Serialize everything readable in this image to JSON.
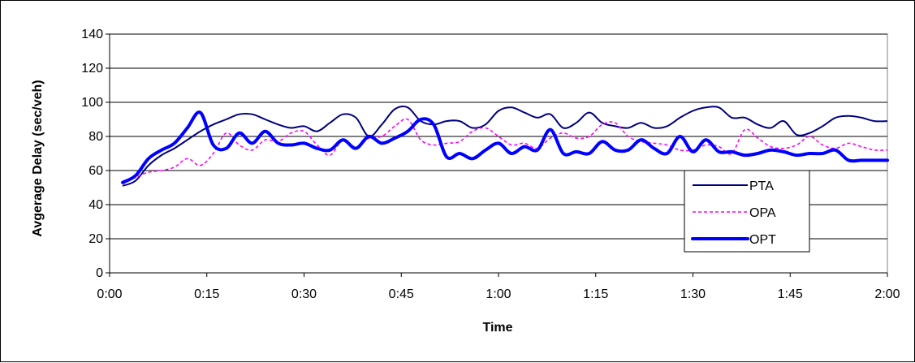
{
  "chart_data": {
    "type": "line",
    "xlabel": "Time",
    "ylabel": "Avgerage Delay (sec/veh)",
    "xlim": [
      0,
      120
    ],
    "ylim": [
      0,
      140
    ],
    "x_ticks": [
      {
        "value": 0,
        "label": "0:00"
      },
      {
        "value": 15,
        "label": "0:15"
      },
      {
        "value": 30,
        "label": "0:30"
      },
      {
        "value": 45,
        "label": "0:45"
      },
      {
        "value": 60,
        "label": "1:00"
      },
      {
        "value": 75,
        "label": "1:15"
      },
      {
        "value": 90,
        "label": "1:30"
      },
      {
        "value": 105,
        "label": "1:45"
      },
      {
        "value": 120,
        "label": "2:00"
      }
    ],
    "y_ticks": [
      0,
      20,
      40,
      60,
      80,
      100,
      120,
      140
    ],
    "grid": "horizontal",
    "legend_position": "lower-right",
    "series": [
      {
        "name": "PTA",
        "color": "#000080",
        "line_style": "solid",
        "x": [
          2,
          4,
          6,
          8,
          10,
          12,
          14,
          16,
          18,
          20,
          22,
          24,
          26,
          28,
          30,
          32,
          34,
          36,
          38,
          40,
          42,
          44,
          46,
          48,
          50,
          52,
          54,
          56,
          58,
          60,
          62,
          64,
          66,
          68,
          70,
          72,
          74,
          76,
          78,
          80,
          82,
          84,
          86,
          88,
          90,
          92,
          94,
          96,
          98,
          100,
          102,
          104,
          106,
          108,
          110,
          112,
          114,
          116,
          118,
          120
        ],
        "y": [
          51,
          54,
          63,
          69,
          73,
          78,
          83,
          87,
          90,
          93,
          93,
          90,
          87,
          85,
          86,
          83,
          88,
          93,
          91,
          80,
          87,
          96,
          97,
          89,
          87,
          89,
          89,
          85,
          87,
          95,
          97,
          94,
          91,
          93,
          85,
          88,
          94,
          88,
          86,
          85,
          88,
          85,
          86,
          91,
          95,
          97,
          97,
          91,
          91,
          87,
          85,
          89,
          81,
          82,
          86,
          91,
          92,
          91,
          89,
          89
        ],
        "interpolation": "smooth"
      },
      {
        "name": "OPA",
        "color": "#ff00ff",
        "line_style": "dashed",
        "x": [
          2,
          4,
          6,
          8,
          10,
          12,
          14,
          16,
          18,
          20,
          22,
          24,
          26,
          28,
          30,
          32,
          34,
          36,
          38,
          40,
          42,
          44,
          46,
          48,
          50,
          52,
          54,
          56,
          58,
          60,
          62,
          64,
          66,
          68,
          70,
          72,
          74,
          76,
          78,
          80,
          82,
          84,
          86,
          88,
          90,
          92,
          94,
          96,
          98,
          100,
          102,
          104,
          106,
          108,
          110,
          112,
          114,
          116,
          118,
          120
        ],
        "y": [
          52,
          56,
          59,
          60,
          62,
          67,
          63,
          70,
          82,
          75,
          72,
          78,
          77,
          82,
          83,
          75,
          69,
          78,
          73,
          79,
          80,
          86,
          90,
          78,
          75,
          76,
          77,
          83,
          85,
          80,
          75,
          76,
          73,
          79,
          82,
          79,
          80,
          87,
          88,
          80,
          77,
          76,
          75,
          72,
          72,
          75,
          74,
          70,
          84,
          79,
          74,
          73,
          75,
          80,
          75,
          73,
          76,
          74,
          72,
          72
        ],
        "interpolation": "smooth"
      },
      {
        "name": "OPT",
        "color": "#0000ff",
        "line_style": "thick",
        "x": [
          2,
          4,
          6,
          8,
          10,
          12,
          14,
          16,
          18,
          20,
          22,
          24,
          26,
          28,
          30,
          32,
          34,
          36,
          38,
          40,
          42,
          44,
          46,
          48,
          50,
          52,
          54,
          56,
          58,
          60,
          62,
          64,
          66,
          68,
          70,
          72,
          74,
          76,
          78,
          80,
          82,
          84,
          86,
          88,
          90,
          92,
          94,
          96,
          98,
          100,
          102,
          104,
          106,
          108,
          110,
          112,
          114,
          116,
          118,
          120
        ],
        "y": [
          53,
          57,
          67,
          72,
          76,
          85,
          94,
          75,
          73,
          82,
          76,
          83,
          76,
          75,
          76,
          73,
          72,
          78,
          73,
          80,
          76,
          79,
          83,
          90,
          87,
          68,
          70,
          67,
          72,
          76,
          70,
          74,
          72,
          84,
          70,
          71,
          70,
          77,
          72,
          72,
          78,
          73,
          70,
          80,
          71,
          78,
          71,
          71,
          69,
          70,
          72,
          71,
          69,
          70,
          70,
          72,
          66,
          66,
          66,
          66
        ]
      }
    ]
  }
}
